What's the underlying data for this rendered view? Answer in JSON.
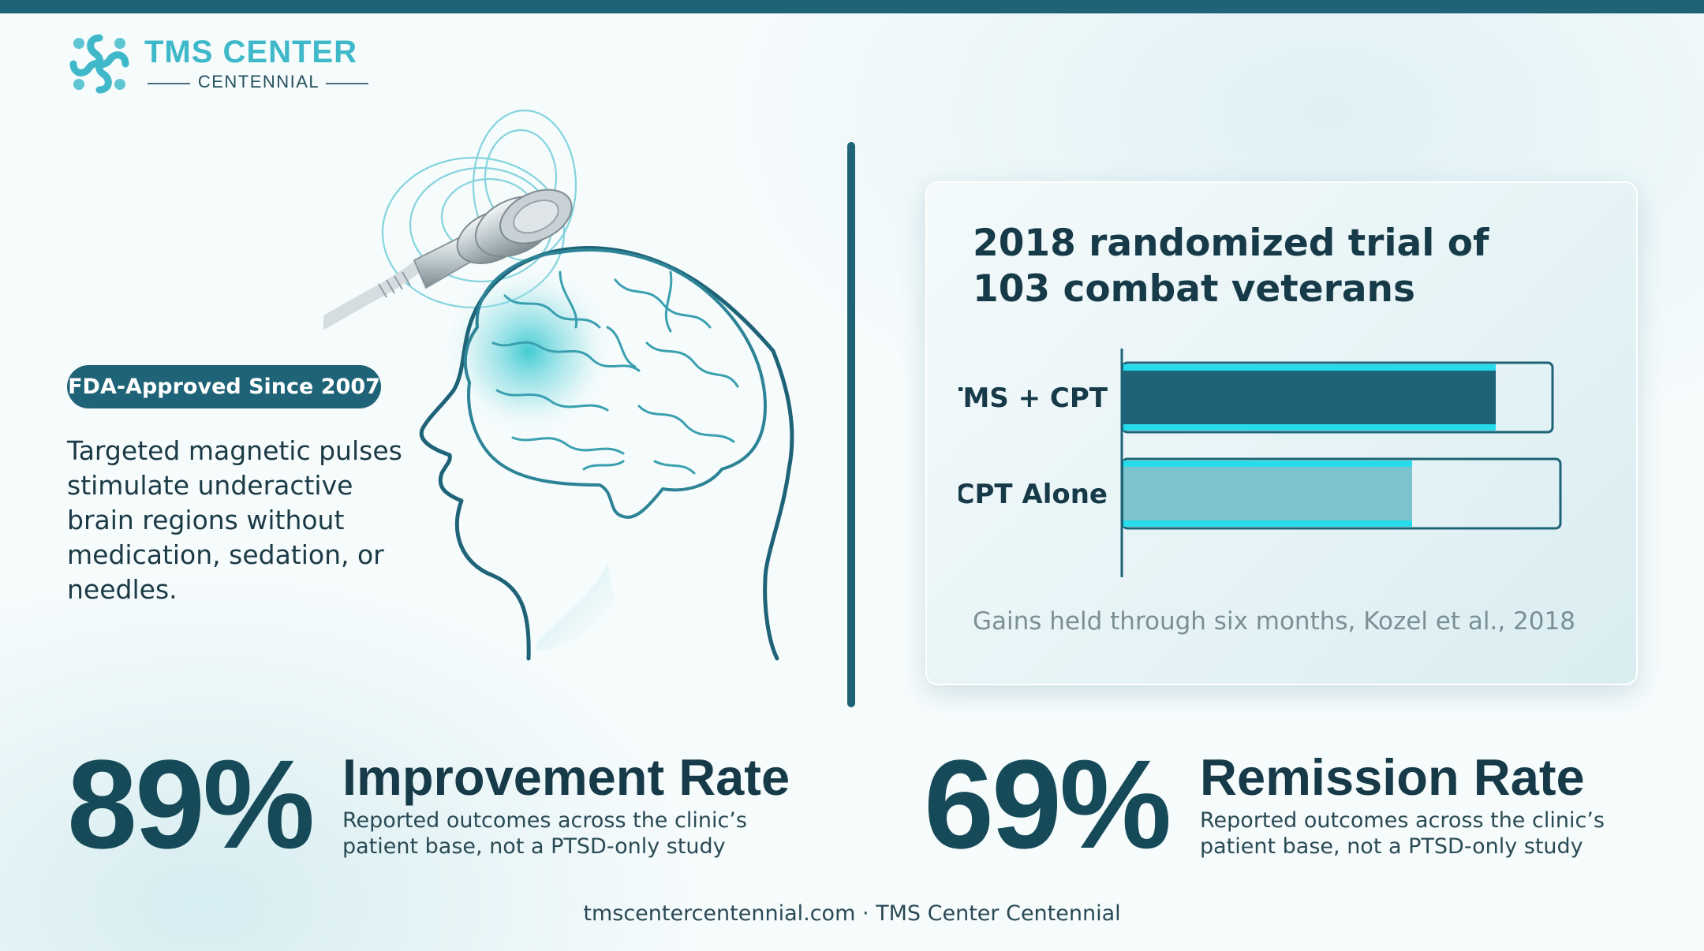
{
  "logo": {
    "title": "TMS CENTER",
    "subtitle": "CENTENNIAL"
  },
  "badge": "FDA-Approved Since 2007",
  "description": "Targeted magnetic pulses stimulate underactive brain regions without medication, sedation, or needles.",
  "card": {
    "title": "2018 randomized trial of 103 combat veterans",
    "note": "Gains held through six months, Kozel et al., 2018"
  },
  "chart_data": {
    "type": "bar",
    "orientation": "horizontal",
    "categories": [
      "rTMS + CPT",
      "CPT Alone"
    ],
    "values": [
      0.85,
      0.66
    ],
    "value_scale": "fraction of track (no axis printed)",
    "title": "2018 randomized trial of 103 combat veterans",
    "xlabel": "",
    "ylabel": "",
    "grid": false,
    "legend": "none",
    "colors": [
      "#1e6377",
      "#7cc3cd"
    ]
  },
  "stats": [
    {
      "value": "89%",
      "title": "Improvement Rate",
      "desc": "Reported outcomes across the clinic’s patient base, not a PTSD-only study"
    },
    {
      "value": "69%",
      "title": "Remission Rate",
      "desc": "Reported outcomes across the clinic’s patient base, not a PTSD-only study"
    }
  ],
  "footer": "tmscentercentennial.com · TMS Center Centennial",
  "colors": {
    "primary": "#1e6377",
    "accent": "#3fb8c9",
    "glow": "#26dcea",
    "text": "#163a47"
  },
  "icons": {
    "logo": "cross-swirl-logo-icon",
    "illustration": "head-brain-tms-coil-icon"
  }
}
